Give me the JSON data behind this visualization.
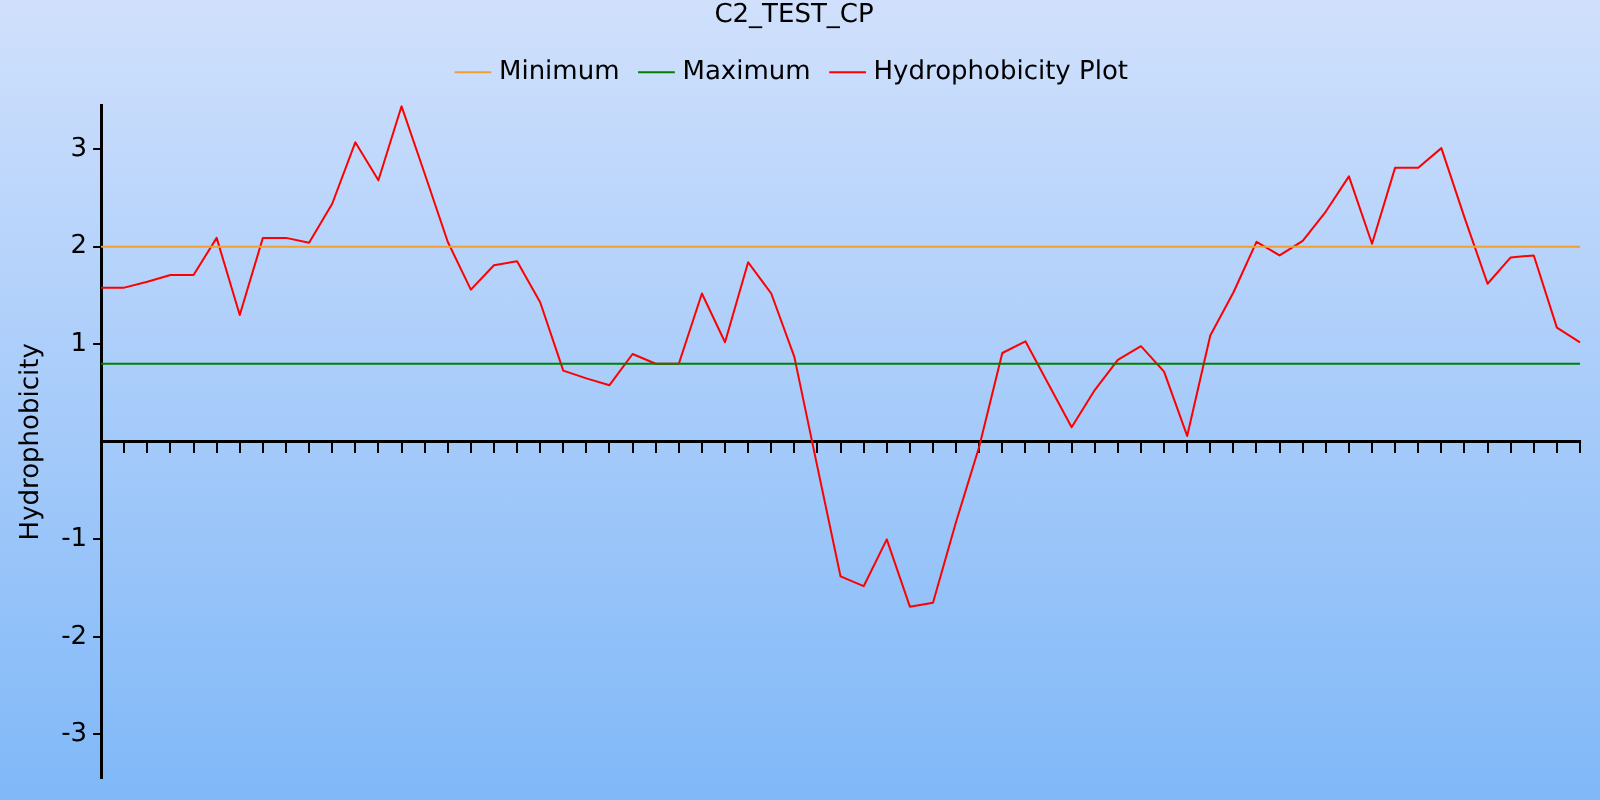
{
  "chart_data": {
    "type": "line",
    "title": "C2_TEST_CP",
    "ylabel": "Hydrophobicity",
    "categories": [
      null,
      null,
      null,
      null,
      null,
      null,
      null,
      null,
      null,
      null,
      null,
      null,
      null,
      null,
      null,
      null,
      null,
      null,
      null,
      null,
      null,
      null,
      null,
      null,
      null,
      null,
      null,
      null,
      null,
      null,
      null,
      null,
      null,
      null,
      null,
      null,
      null,
      null,
      null,
      null,
      null,
      null,
      null,
      null,
      null,
      null,
      null,
      null,
      null,
      null,
      null,
      null,
      null,
      null,
      null,
      null,
      null,
      null,
      null,
      null,
      null,
      null,
      null,
      null,
      null
    ],
    "series": [
      {
        "name": "Minimum",
        "color": "#f0a030",
        "values": [
          2,
          2,
          2,
          2,
          2,
          2,
          2,
          2,
          2,
          2,
          2,
          2,
          2,
          2,
          2,
          2,
          2,
          2,
          2,
          2,
          2,
          2,
          2,
          2,
          2,
          2,
          2,
          2,
          2,
          2,
          2,
          2,
          2,
          2,
          2,
          2,
          2,
          2,
          2,
          2,
          2,
          2,
          2,
          2,
          2,
          2,
          2,
          2,
          2,
          2,
          2,
          2,
          2,
          2,
          2,
          2,
          2,
          2,
          2,
          2,
          2,
          2,
          2,
          2,
          2
        ]
      },
      {
        "name": "Maximum",
        "color": "#008000",
        "values": [
          0.8,
          0.8,
          0.8,
          0.8,
          0.8,
          0.8,
          0.8,
          0.8,
          0.8,
          0.8,
          0.8,
          0.8,
          0.8,
          0.8,
          0.8,
          0.8,
          0.8,
          0.8,
          0.8,
          0.8,
          0.8,
          0.8,
          0.8,
          0.8,
          0.8,
          0.8,
          0.8,
          0.8,
          0.8,
          0.8,
          0.8,
          0.8,
          0.8,
          0.8,
          0.8,
          0.8,
          0.8,
          0.8,
          0.8,
          0.8,
          0.8,
          0.8,
          0.8,
          0.8,
          0.8,
          0.8,
          0.8,
          0.8,
          0.8,
          0.8,
          0.8,
          0.8,
          0.8,
          0.8,
          0.8,
          0.8,
          0.8,
          0.8,
          0.8,
          0.8,
          0.8,
          0.8,
          0.8,
          0.8,
          0.8
        ]
      },
      {
        "name": "Hydrophobicity Plot",
        "color": "#ff0000",
        "values": [
          1.58,
          1.58,
          1.64,
          1.71,
          1.71,
          2.09,
          1.3,
          2.09,
          2.09,
          2.04,
          2.44,
          3.07,
          2.68,
          3.44,
          2.75,
          2.05,
          1.56,
          1.81,
          1.85,
          1.43,
          0.73,
          0.65,
          0.58,
          0.9,
          0.8,
          0.8,
          1.52,
          1.02,
          1.84,
          1.52,
          0.87,
          -0.26,
          -1.38,
          -1.48,
          -1,
          -1.69,
          -1.65,
          -0.82,
          -0.05,
          0.91,
          1.03,
          0.59,
          0.15,
          0.53,
          0.84,
          0.98,
          0.72,
          0.06,
          1.09,
          1.53,
          2.05,
          1.91,
          2.06,
          2.36,
          2.72,
          2.03,
          2.81,
          2.81,
          3.01,
          2.3,
          1.62,
          1.89,
          1.91,
          1.17,
          1.02
        ]
      }
    ],
    "ylim": [
      -3.45,
      3.45
    ],
    "yticks": [
      -3,
      -2,
      -1,
      1,
      2,
      3
    ],
    "grid": false,
    "legend": "top",
    "marker": "none",
    "line_style": "solid",
    "tick_labels": "y"
  }
}
